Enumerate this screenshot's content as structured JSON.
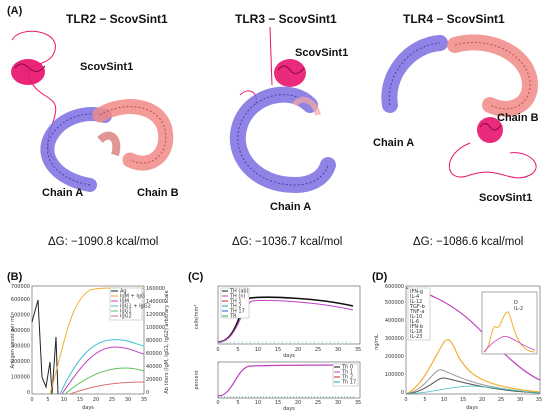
{
  "panels": {
    "A": {
      "label": "(A)"
    },
    "B": {
      "label": "(B)"
    },
    "C": {
      "label": "(C)"
    },
    "D": {
      "label": "(D)"
    }
  },
  "structures": [
    {
      "title": "TLR2 − ScovSint1",
      "ligand": "ScovSint1",
      "chainA": "Chain A",
      "chainB": "Chain B",
      "dg": "ΔG: −1090.8 kcal/mol"
    },
    {
      "title": "TLR3 − ScovSint1",
      "ligand": "ScovSint1",
      "chainA": "Chain A",
      "dg": "ΔG: −1036.7 kcal/mol"
    },
    {
      "title": "TLR4 − ScovSint1",
      "ligand": "ScovSint1",
      "chainA": "Chain A",
      "chainB": "Chain B",
      "dg": "ΔG: −1086.6 kcal/mol"
    }
  ],
  "colors": {
    "chainA": "#7b6fe0",
    "chainB": "#f08a86",
    "ligand": "#e8146e"
  },
  "plotB": {
    "ylabel_left": "Antigen count per ml",
    "ylabel_right": "Ab titers (IgM, IgG1, IgG2) arbitrary scale",
    "xlabel": "days",
    "xticks": [
      "0",
      "5",
      "10",
      "15",
      "20",
      "25",
      "30",
      "35"
    ],
    "yticks_left": [
      "0",
      "100000",
      "200000",
      "300000",
      "400000",
      "500000",
      "600000",
      "700000"
    ],
    "yticks_right": [
      "0",
      "20000",
      "40000",
      "60000",
      "80000",
      "100000",
      "120000",
      "140000",
      "160000"
    ],
    "legend": [
      "Ag",
      "IgM + IgG",
      "IgM",
      "IgG1 + IgG2",
      "IgG1",
      "IgG2"
    ]
  },
  "plotC": {
    "xlabel": "days",
    "ylabel_top": "cells/mm³",
    "ylabel_bottom": "percent",
    "xticks": [
      "0",
      "5",
      "10",
      "15",
      "20",
      "25",
      "30",
      "35"
    ],
    "legend_top": [
      "TH (ab)",
      "TH (n)",
      "TH 1",
      "TH 2",
      "TH 17",
      "TR"
    ],
    "legend_bottom": [
      "Th 0",
      "Th 1",
      "Th 2",
      "Th 17"
    ]
  },
  "plotD": {
    "ylabel": "ng/mL",
    "xlabel": "days",
    "xticks": [
      "0",
      "5",
      "10",
      "15",
      "20",
      "25",
      "30",
      "35"
    ],
    "yticks": [
      "0",
      "100000",
      "200000",
      "300000",
      "400000",
      "500000",
      "600000"
    ],
    "legend": [
      "IFN-g",
      "IL-4",
      "IL-12",
      "TGF-b",
      "TNF-a",
      "IL-10",
      "IL-6",
      "IFN-b",
      "IL-18",
      "IL-23"
    ],
    "inset_legend": [
      "D",
      "IL-2"
    ]
  }
}
